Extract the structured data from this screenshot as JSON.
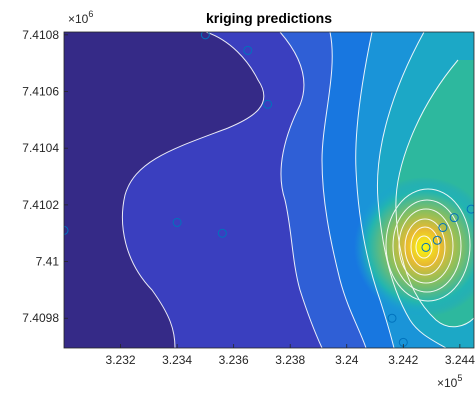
{
  "chart_data": {
    "type": "heatmap",
    "subtype": "filled-contour",
    "title": "kriging predictions",
    "xlabel": "",
    "ylabel": "",
    "xlim": [
      323000,
      324450
    ],
    "ylim": [
      7409695,
      7410810
    ],
    "x_ticks": [
      323200,
      323400,
      323600,
      323800,
      324000,
      324200,
      324400
    ],
    "x_tick_labels": [
      "3.232",
      "3.234",
      "3.236",
      "3.238",
      "3.24",
      "3.242",
      "3.244"
    ],
    "x_exponent_base": "×10",
    "x_exponent_power": "5",
    "y_ticks": [
      7409800,
      7410000,
      7410200,
      7410400,
      7410600,
      7410800
    ],
    "y_tick_labels": [
      "7.4098",
      "7.41",
      "7.4102",
      "7.4104",
      "7.4106",
      "7.4108"
    ],
    "y_exponent_base": "×10",
    "y_exponent_power": "6",
    "colormap": "parula",
    "contour_line_color": "#ffffff",
    "marker_color": "#0072bd",
    "peak": {
      "x": 324280,
      "y": 7410050
    },
    "sample_points": [
      {
        "x": 323000,
        "y": 7410110
      },
      {
        "x": 323400,
        "y": 7410138
      },
      {
        "x": 323500,
        "y": 7410800
      },
      {
        "x": 323560,
        "y": 7410100
      },
      {
        "x": 323650,
        "y": 7410745
      },
      {
        "x": 323720,
        "y": 7410555
      },
      {
        "x": 324160,
        "y": 7409800
      },
      {
        "x": 324200,
        "y": 7409715
      },
      {
        "x": 324280,
        "y": 7410050
      },
      {
        "x": 324320,
        "y": 7410075
      },
      {
        "x": 324340,
        "y": 7410120
      },
      {
        "x": 324380,
        "y": 7410155
      },
      {
        "x": 324440,
        "y": 7410185
      }
    ]
  }
}
